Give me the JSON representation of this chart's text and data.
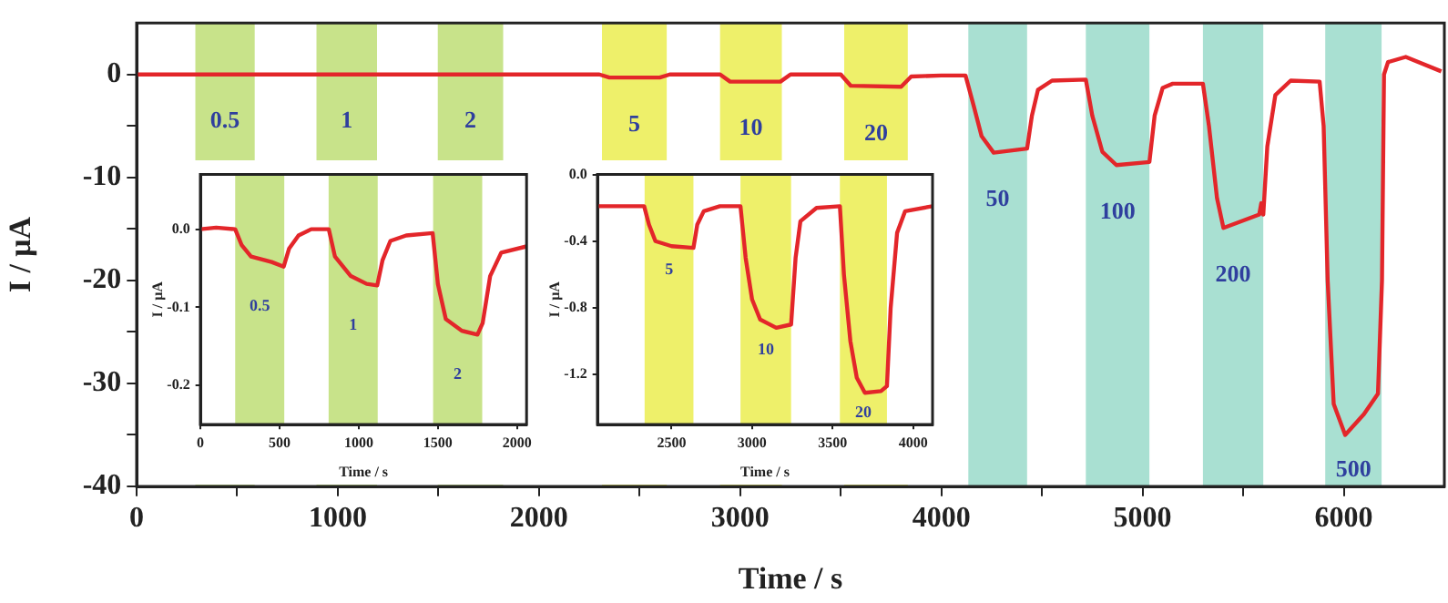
{
  "chart_data": [
    {
      "type": "line",
      "xlabel": "Time / s",
      "ylabel": "I / μA",
      "xlim": [
        0,
        6500
      ],
      "ylim": [
        -40,
        5
      ],
      "xticks": [
        0,
        {
          "value": 500,
          "label": null
        },
        1000,
        {
          "value": 1500,
          "label": null
        },
        2000,
        {
          "value": 2500,
          "label": null
        },
        3000,
        {
          "value": 3500,
          "label": null
        },
        4000,
        {
          "value": 4500,
          "label": null
        },
        5000,
        {
          "value": 5500,
          "label": null
        },
        6000
      ],
      "yticks": [
        -40,
        {
          "value": -35,
          "label": null
        },
        -30,
        {
          "value": -25,
          "label": null
        },
        -20,
        {
          "value": -15,
          "label": null
        },
        -10,
        {
          "value": -5,
          "label": null
        },
        0
      ],
      "series": [
        {
          "color": "#e3262a",
          "x": [
            0,
            2300,
            2350,
            2600,
            2650,
            2900,
            2950,
            3200,
            3250,
            3500,
            3550,
            3800,
            3850,
            4000,
            4120,
            4160,
            4200,
            4260,
            4426,
            4450,
            4480,
            4550,
            4718,
            4750,
            4800,
            4870,
            5034,
            5060,
            5100,
            5150,
            5300,
            5330,
            5370,
            5402,
            5580,
            5590,
            5600,
            5620,
            5660,
            5736,
            5880,
            5900,
            5920,
            5950,
            6007,
            6100,
            6170,
            6190,
            6200,
            6220,
            6308,
            6485
          ],
          "values": [
            0,
            0,
            -0.3,
            -0.3,
            0,
            0,
            -0.7,
            -0.7,
            0,
            0,
            -1.1,
            -1.2,
            -0.2,
            -0.1,
            -0.1,
            -3,
            -6,
            -7.6,
            -7.2,
            -4,
            -1.5,
            -0.6,
            -0.5,
            -4,
            -7.5,
            -8.8,
            -8.5,
            -4,
            -1.3,
            -0.9,
            -0.9,
            -5,
            -12,
            -14.9,
            -13.6,
            -12.5,
            -13.6,
            -7,
            -2,
            -0.6,
            -0.7,
            -5,
            -20,
            -32,
            -35,
            -33,
            -31,
            -20,
            0,
            1.2,
            1.7,
            0.3
          ]
        }
      ],
      "bands": [
        {
          "axis": "x",
          "from": 292,
          "to": 587,
          "color": "#c8e38a",
          "label": "0.5"
        },
        {
          "axis": "x",
          "from": 894,
          "to": 1195,
          "color": "#c8e38a",
          "label": "1"
        },
        {
          "axis": "x",
          "from": 1497,
          "to": 1822,
          "color": "#c8e38a",
          "label": "2"
        },
        {
          "axis": "x",
          "from": 2313,
          "to": 2635,
          "color": "#eef06a",
          "label": "5"
        },
        {
          "axis": "x",
          "from": 2900,
          "to": 3207,
          "color": "#eef06a",
          "label": "10"
        },
        {
          "axis": "x",
          "from": 3517,
          "to": 3833,
          "color": "#eef06a",
          "label": "20"
        },
        {
          "axis": "x",
          "from": 4134,
          "to": 4426,
          "color": "#a9e0d2",
          "label": "50"
        },
        {
          "axis": "x",
          "from": 4718,
          "to": 5034,
          "color": "#a9e0d2",
          "label": "100"
        },
        {
          "axis": "x",
          "from": 5300,
          "to": 5600,
          "color": "#a9e0d2",
          "label": "200"
        },
        {
          "axis": "x",
          "from": 5908,
          "to": 6188,
          "color": "#a9e0d2",
          "label": "500"
        }
      ]
    },
    {
      "type": "line",
      "xlabel": "Time / s",
      "ylabel": "I / μA",
      "xlim": [
        0,
        2060
      ],
      "ylim": [
        -0.25,
        0.07
      ],
      "xticks": [
        0,
        500,
        1000,
        1500,
        2000
      ],
      "yticks": [
        {
          "value": -0.2,
          "label": "-0.2"
        },
        {
          "value": -0.1,
          "label": "-0.1"
        },
        {
          "value": 0,
          "label": "0.0"
        }
      ],
      "series": [
        {
          "color": "#e3262a",
          "x": [
            0,
            100,
            220,
            260,
            320,
            450,
            526,
            560,
            620,
            700,
            811,
            850,
            950,
            1050,
            1117,
            1150,
            1200,
            1300,
            1467,
            1500,
            1550,
            1650,
            1750,
            1783,
            1830,
            1900,
            2060
          ],
          "values": [
            0,
            0.002,
            0,
            -0.02,
            -0.035,
            -0.042,
            -0.048,
            -0.025,
            -0.008,
            0,
            0,
            -0.035,
            -0.06,
            -0.07,
            -0.072,
            -0.04,
            -0.015,
            -0.008,
            -0.005,
            -0.07,
            -0.115,
            -0.13,
            -0.135,
            -0.12,
            -0.06,
            -0.03,
            -0.022
          ]
        }
      ],
      "bands": [
        {
          "axis": "x",
          "from": 220,
          "to": 530,
          "color": "#c8e38a",
          "label": "0.5"
        },
        {
          "axis": "x",
          "from": 810,
          "to": 1120,
          "color": "#c8e38a",
          "label": "1"
        },
        {
          "axis": "x",
          "from": 1470,
          "to": 1780,
          "color": "#c8e38a",
          "label": "2"
        }
      ]
    },
    {
      "type": "line",
      "xlabel": "Time / s",
      "ylabel": "I / μA",
      "xlim": [
        2040,
        4120
      ],
      "ylim": [
        -1.5,
        0
      ],
      "xticks": [
        2500,
        3000,
        3500,
        4000
      ],
      "yticks": [
        {
          "value": -1.2,
          "label": "-1.2"
        },
        {
          "value": -0.8,
          "label": "-0.8"
        },
        {
          "value": -0.4,
          "label": "-0.4"
        },
        {
          "value": 0,
          "label": "0.0"
        }
      ],
      "series": [
        {
          "color": "#e3262a",
          "x": [
            2040,
            2330,
            2360,
            2400,
            2500,
            2636,
            2660,
            2700,
            2800,
            2928,
            2960,
            3000,
            3050,
            3150,
            3242,
            3270,
            3300,
            3400,
            3545,
            3570,
            3610,
            3650,
            3700,
            3800,
            3837,
            3860,
            3900,
            3950,
            4120
          ],
          "values": [
            -0.19,
            -0.19,
            -0.3,
            -0.4,
            -0.43,
            -0.44,
            -0.3,
            -0.22,
            -0.19,
            -0.19,
            -0.5,
            -0.75,
            -0.87,
            -0.92,
            -0.9,
            -0.5,
            -0.28,
            -0.2,
            -0.19,
            -0.6,
            -1.0,
            -1.22,
            -1.31,
            -1.3,
            -1.27,
            -0.8,
            -0.35,
            -0.22,
            -0.19
          ]
        }
      ],
      "bands": [
        {
          "axis": "x",
          "from": 2333,
          "to": 2636,
          "color": "#eef06a",
          "label": "5"
        },
        {
          "axis": "x",
          "from": 2928,
          "to": 3242,
          "color": "#eef06a",
          "label": "10"
        },
        {
          "axis": "x",
          "from": 3545,
          "to": 3837,
          "color": "#eef06a",
          "label": "20"
        }
      ]
    }
  ]
}
